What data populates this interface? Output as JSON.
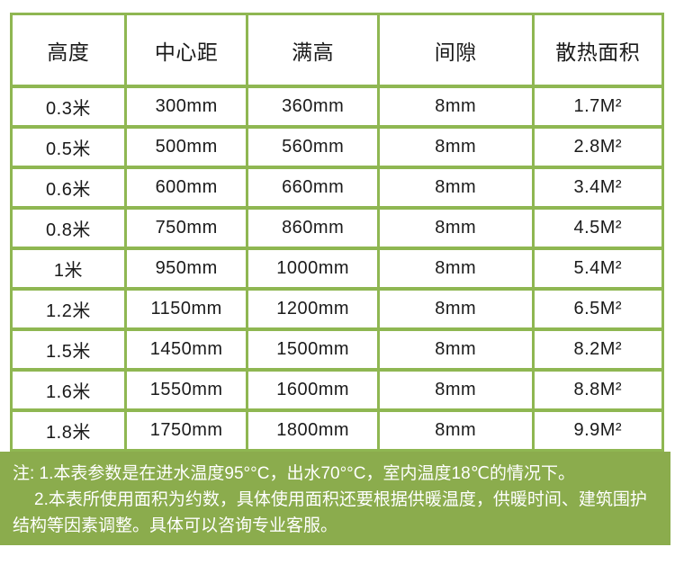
{
  "table": {
    "headers": [
      "高度",
      "中心距",
      "满高",
      "间隙",
      "散热面积"
    ],
    "rows": [
      [
        "0.3米",
        "300mm",
        "360mm",
        "8mm",
        "1.7M²"
      ],
      [
        "0.5米",
        "500mm",
        "560mm",
        "8mm",
        "2.8M²"
      ],
      [
        "0.6米",
        "600mm",
        "660mm",
        "8mm",
        "3.4M²"
      ],
      [
        "0.8米",
        "750mm",
        "860mm",
        "8mm",
        "4.5M²"
      ],
      [
        "1米",
        "950mm",
        "1000mm",
        "8mm",
        "5.4M²"
      ],
      [
        "1.2米",
        "1150mm",
        "1200mm",
        "8mm",
        "6.5M²"
      ],
      [
        "1.5米",
        "1450mm",
        "1500mm",
        "8mm",
        "8.2M²"
      ],
      [
        "1.6米",
        "1550mm",
        "1600mm",
        "8mm",
        "8.8M²"
      ],
      [
        "1.8米",
        "1750mm",
        "1800mm",
        "8mm",
        "9.9M²"
      ]
    ]
  },
  "notes": {
    "lines": [
      "注: 1.本表参数是在进水温度95°°C，出水70°°C，室内温度18℃的情况下。",
      "2.本表所使用面积为约数，具体使用面积还要根据供暖温度，供暖时间、建筑围护",
      "结构等因素调整。具体可以咨询专业客服。"
    ]
  },
  "colors": {
    "table_border_green": "#8FB752",
    "notes_background_green": "#8BAC4D",
    "text_dark": "#1A1A1A",
    "notes_text": "#FFFFFF"
  }
}
